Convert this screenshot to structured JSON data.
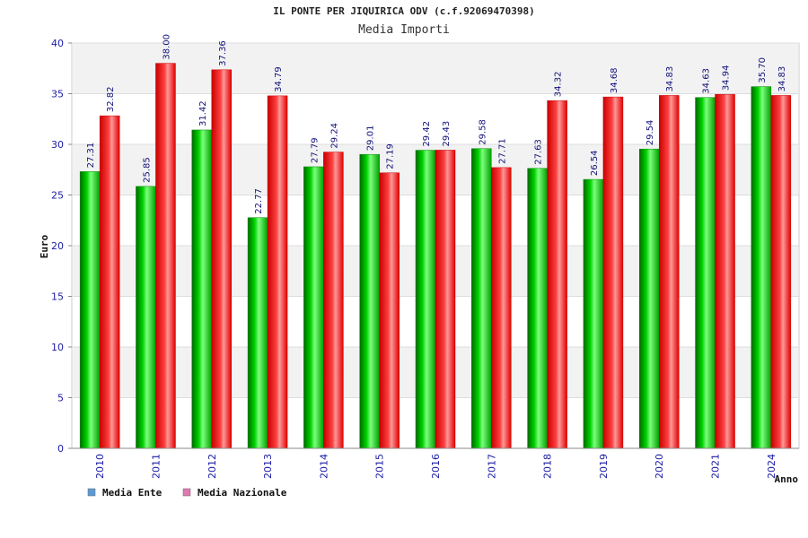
{
  "chart_data": {
    "type": "bar",
    "title": "IL PONTE PER JIQUIRICA ODV (c.f.92069470398)",
    "subtitle": "Media Importi",
    "xlabel": "Anno",
    "ylabel": "Euro",
    "ylim": [
      0,
      40
    ],
    "yticks": [
      0,
      5,
      10,
      15,
      20,
      25,
      30,
      35,
      40
    ],
    "grid": true,
    "legend_placement": "bottom-left",
    "categories": [
      "2010",
      "2011",
      "2012",
      "2013",
      "2014",
      "2015",
      "2016",
      "2017",
      "2018",
      "2019",
      "2020",
      "2021",
      "2024"
    ],
    "series": [
      {
        "name": "Media Ente",
        "color": "#00c000",
        "legend_color": "#5b9bd5",
        "values": [
          27.31,
          25.85,
          31.42,
          22.77,
          27.79,
          29.01,
          29.42,
          29.58,
          27.63,
          26.54,
          29.54,
          34.63,
          35.7
        ],
        "labels": [
          "27.31",
          "25.85",
          "31.42",
          "22.77",
          "27.79",
          "29.01",
          "29.42",
          "29.58",
          "27.63",
          "26.54",
          "29.54",
          "34.63",
          "35.70"
        ]
      },
      {
        "name": "Media Nazionale",
        "color": "#ff1a1a",
        "legend_color": "#e07ab0",
        "values": [
          32.82,
          38.0,
          37.36,
          34.79,
          29.24,
          27.19,
          29.43,
          27.71,
          34.32,
          34.68,
          34.83,
          34.94,
          34.83
        ],
        "labels": [
          "32.82",
          "38.00",
          "37.36",
          "34.79",
          "29.24",
          "27.19",
          "29.43",
          "27.71",
          "34.32",
          "34.68",
          "34.83",
          "34.94",
          "34.83"
        ]
      }
    ]
  }
}
